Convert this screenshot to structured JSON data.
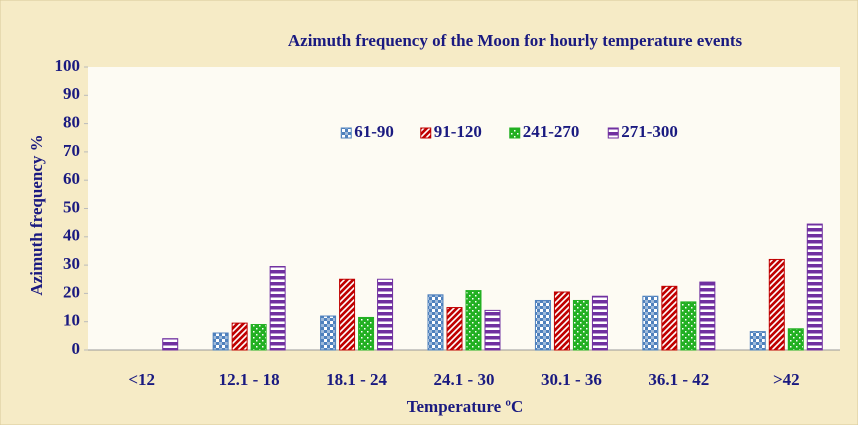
{
  "chart_data": {
    "type": "bar",
    "title": "Azimuth frequency of the Moon for hourly temperature events",
    "x_label": "Temperature ºC",
    "y_label": "Azimuth frequency %",
    "categories": [
      "<12",
      "12.1 - 18",
      "18.1 - 24",
      "24.1 - 30",
      "30.1 - 36",
      "36.1 - 42",
      ">42"
    ],
    "series": [
      {
        "name": "61-90",
        "color": "#4f81bd",
        "values": [
          0,
          6,
          12,
          19.5,
          17.5,
          19,
          6.5
        ]
      },
      {
        "name": "91-120",
        "color": "#c00000",
        "values": [
          0,
          9.5,
          25,
          15,
          20.5,
          22.5,
          32
        ]
      },
      {
        "name": "241-270",
        "color": "#22b022",
        "values": [
          0,
          9,
          11.5,
          21,
          17.5,
          17,
          7.5
        ]
      },
      {
        "name": "271-300",
        "color": "#7030a0",
        "values": [
          4,
          29.5,
          25,
          14,
          19,
          24,
          44.5
        ]
      }
    ],
    "ylim": [
      0,
      100
    ],
    "yticks": [
      0,
      10,
      20,
      30,
      40,
      50,
      60,
      70,
      80,
      90,
      100
    ],
    "legend": "top"
  }
}
